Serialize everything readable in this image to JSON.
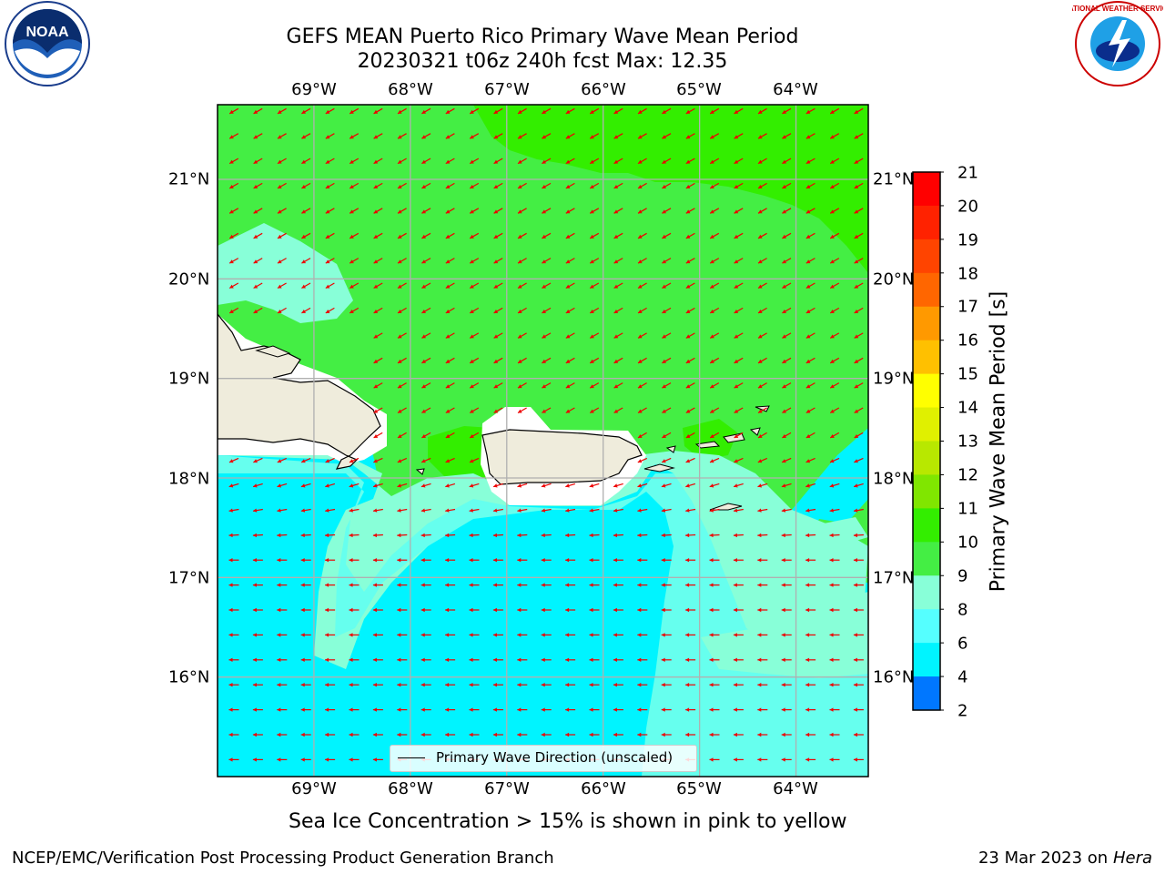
{
  "chart_data": {
    "type": "contour_map",
    "title": "GEFS MEAN Puerto Rico Primary Wave Mean Period",
    "subtitle": "20230321 t06z 240h fcst   Max: 12.35",
    "lon_labels": [
      "69°W",
      "68°W",
      "67°W",
      "66°W",
      "65°W",
      "64°W"
    ],
    "lat_labels": [
      "21°N",
      "20°N",
      "19°N",
      "18°N",
      "17°N",
      "16°N"
    ],
    "lon_range": [
      -70.0,
      -63.25
    ],
    "lat_range": [
      15.0,
      21.75
    ],
    "colorbar": {
      "label": "Primary Wave Mean Period [s]",
      "ticks": [
        "21",
        "20",
        "19",
        "18",
        "17",
        "16",
        "15",
        "14",
        "13",
        "12",
        "11",
        "10",
        "9",
        "8",
        "6",
        "4",
        "2"
      ],
      "colors": [
        "#ff0000",
        "#ff2200",
        "#ff4400",
        "#ff6600",
        "#ff9900",
        "#ffc000",
        "#ffff00",
        "#e0f000",
        "#b8e800",
        "#80e600",
        "#33ee00",
        "#44ee44",
        "#88ffd8",
        "#55ffff",
        "#00f4ff",
        "#0077ff",
        "#0000ff"
      ]
    },
    "legend": "Primary Wave Direction (unscaled)",
    "wave_direction": "southwestward in north, westward in south",
    "max_value": 12.35
  },
  "note": "Sea Ice Concentration > 15% is shown in pink to yellow",
  "footer": {
    "left": "NCEP/EMC/Verification Post Processing Product Generation Branch",
    "date": "23 Mar 2023 on",
    "host": "Hera"
  },
  "logos": {
    "left": "NOAA",
    "right": "NATIONAL WEATHER SERVICE"
  },
  "colors": {
    "land": "#efecdc",
    "arrow": "#ee0000",
    "grid": "#b0b0b0"
  }
}
